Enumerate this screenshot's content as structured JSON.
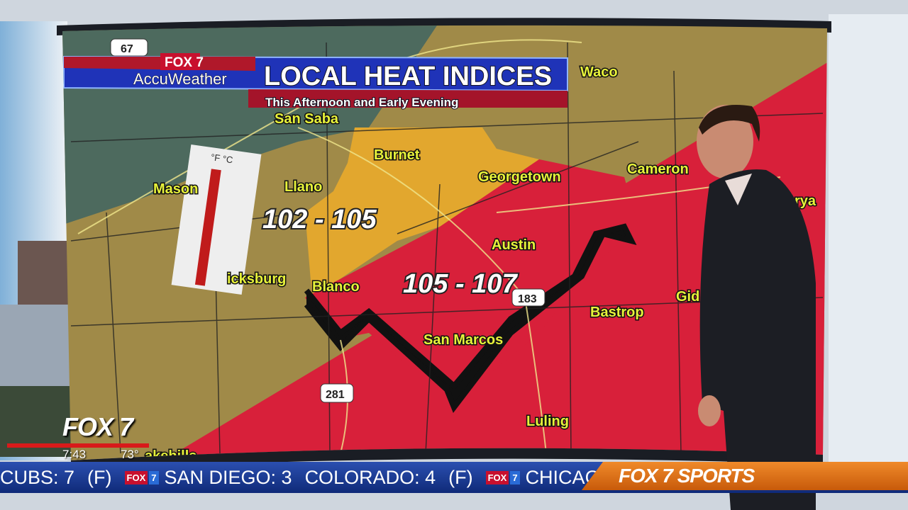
{
  "header": {
    "station_logo": "FOX 7",
    "sponsor": "AccuWeather",
    "title": "LOCAL HEAT INDICES",
    "subtitle": "This Afternoon and Early Evening"
  },
  "map": {
    "ranges": [
      {
        "label": "102 - 105",
        "color": "#e2a72e"
      },
      {
        "label": "105 - 107",
        "color": "#d8203a"
      }
    ],
    "cities": [
      "San Saba",
      "Burnet",
      "Llano",
      "Mason",
      "Georgetown",
      "Cameron",
      "Waco",
      "Austin",
      "Blanco",
      "icksburg",
      "Bastrop",
      "Gid",
      "rya",
      "San Marcos",
      "Luling",
      "akehills"
    ],
    "highways": [
      "67",
      "183",
      "281"
    ],
    "thermometer_units": "°F °C"
  },
  "corner_bug": {
    "logo": "FOX 7",
    "time": "7:43",
    "temperature": "73°"
  },
  "ticker": {
    "items": [
      "CUBS: 7",
      "(F)",
      "SAN DIEGO: 3",
      "COLORADO: 4",
      "(F)",
      "CHICAGO W"
    ],
    "mini_logo": "FOX",
    "mini_logo_num": "7",
    "section": "FOX 7 SPORTS",
    "colors": {
      "ticker": "#1a3a90",
      "sports": "#e07820"
    }
  }
}
